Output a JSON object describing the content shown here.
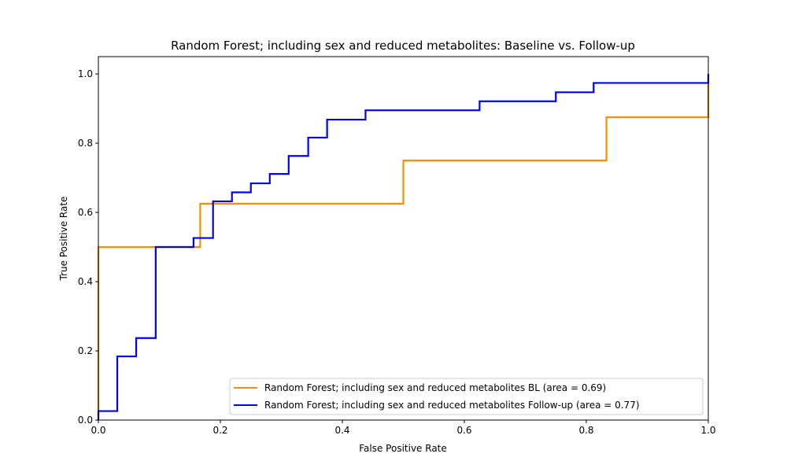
{
  "chart_data": {
    "type": "line",
    "title": "Random Forest; including sex and reduced metabolites: Baseline vs. Follow-up",
    "xlabel": "False Positive Rate",
    "ylabel": "True Positive Rate",
    "xlim": [
      0.0,
      1.0
    ],
    "ylim": [
      0.0,
      1.05
    ],
    "x_ticks": [
      "0.0",
      "0.2",
      "0.4",
      "0.6",
      "0.8",
      "1.0"
    ],
    "y_ticks": [
      "0.0",
      "0.2",
      "0.4",
      "0.6",
      "0.8",
      "1.0"
    ],
    "grid": false,
    "legend_position": "lower right",
    "series": [
      {
        "name": "Random Forest; including sex and reduced metabolites BL (area = 0.69)",
        "color": "#ff8c00",
        "step": "post",
        "x": [
          0.0,
          0.0,
          0.0,
          0.167,
          0.167,
          0.5,
          0.5,
          0.833,
          0.833,
          1.0,
          1.0
        ],
        "y": [
          0.0,
          0.0,
          0.5,
          0.5,
          0.625,
          0.625,
          0.75,
          0.75,
          0.875,
          0.875,
          1.0
        ]
      },
      {
        "name": "Random Forest; including sex and reduced metabolites Follow-up (area = 0.77)",
        "color": "#0000ff",
        "step": "post",
        "x": [
          0.0,
          0.0,
          0.031,
          0.031,
          0.062,
          0.062,
          0.094,
          0.094,
          0.156,
          0.156,
          0.188,
          0.188,
          0.219,
          0.219,
          0.25,
          0.25,
          0.281,
          0.281,
          0.312,
          0.312,
          0.344,
          0.344,
          0.375,
          0.375,
          0.438,
          0.438,
          0.625,
          0.625,
          0.75,
          0.75,
          0.812,
          0.812,
          1.0,
          1.0
        ],
        "y": [
          0.0,
          0.026,
          0.026,
          0.184,
          0.184,
          0.237,
          0.237,
          0.5,
          0.5,
          0.526,
          0.526,
          0.632,
          0.632,
          0.658,
          0.658,
          0.684,
          0.684,
          0.711,
          0.711,
          0.763,
          0.763,
          0.816,
          0.816,
          0.868,
          0.868,
          0.895,
          0.895,
          0.921,
          0.921,
          0.947,
          0.947,
          0.974,
          0.974,
          1.0
        ]
      }
    ]
  }
}
